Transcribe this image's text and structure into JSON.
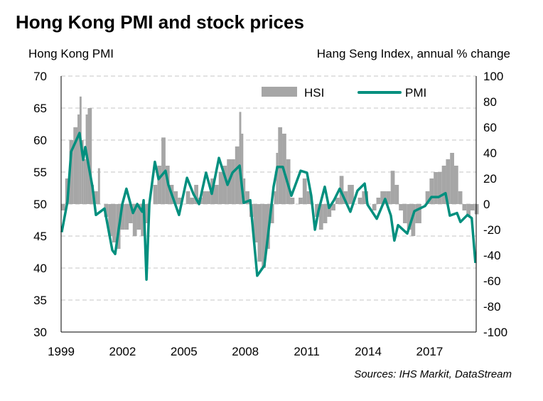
{
  "chart_data": {
    "type": "bar+line",
    "title": "Hong Kong PMI and stock prices",
    "ylabel_left": "Hong Kong PMI",
    "ylabel_right": "Hang Seng Index, annual % change",
    "source": "Sources:  IHS Markit, DataStream",
    "ylim_left": [
      30,
      70
    ],
    "ylim_right": [
      -100,
      100
    ],
    "xlim": [
      1999,
      2020.3
    ],
    "yticks_left": [
      30,
      35,
      40,
      45,
      50,
      55,
      60,
      65,
      70
    ],
    "yticks_right": [
      -100,
      -80,
      -60,
      -40,
      -20,
      0,
      20,
      40,
      60,
      80,
      100
    ],
    "xticks": [
      1999,
      2002,
      2005,
      2008,
      2011,
      2014,
      2017
    ],
    "grid": "horizontal dashed",
    "legend_placement": "top-right",
    "colors": {
      "HSI": "#a6a6a6",
      "PMI": "#008f7e"
    },
    "series": [
      {
        "name": "HSI",
        "axis": "right",
        "kind": "bar",
        "x": [
          1999.0,
          1999.2,
          1999.4,
          1999.6,
          1999.8,
          1999.9,
          2000.0,
          2000.1,
          2000.2,
          2000.3,
          2000.5,
          2000.6,
          2000.8,
          2000.9,
          2001.1,
          2001.3,
          2001.5,
          2001.7,
          2001.9,
          2002.1,
          2002.3,
          2002.5,
          2002.7,
          2002.9,
          2003.1,
          2003.3,
          2003.5,
          2003.7,
          2003.9,
          2004.1,
          2004.3,
          2004.5,
          2004.7,
          2004.9,
          2005.1,
          2005.3,
          2005.5,
          2005.7,
          2005.9,
          2006.1,
          2006.3,
          2006.5,
          2006.7,
          2006.9,
          2007.1,
          2007.3,
          2007.5,
          2007.7,
          2007.8,
          2007.9,
          2008.0,
          2008.2,
          2008.4,
          2008.6,
          2008.8,
          2009.0,
          2009.2,
          2009.4,
          2009.5,
          2009.6,
          2009.8,
          2010.0,
          2010.2,
          2010.4,
          2010.6,
          2010.8,
          2011.0,
          2011.2,
          2011.4,
          2011.6,
          2011.8,
          2012.0,
          2012.2,
          2012.4,
          2012.6,
          2012.8,
          2013.0,
          2013.3,
          2013.5,
          2013.7,
          2014.0,
          2014.2,
          2014.4,
          2014.6,
          2014.9,
          2015.1,
          2015.3,
          2015.5,
          2015.7,
          2015.9,
          2016.1,
          2016.3,
          2016.6,
          2016.8,
          2017.0,
          2017.2,
          2017.4,
          2017.6,
          2017.8,
          2018.0,
          2018.2,
          2018.4,
          2018.6,
          2018.8,
          2019.0,
          2019.2
        ],
        "values": [
          -5,
          20,
          50,
          60,
          70,
          84,
          50,
          35,
          70,
          75,
          15,
          10,
          28,
          0,
          -10,
          -25,
          -30,
          -35,
          -20,
          -20,
          -15,
          -25,
          -20,
          -25,
          -15,
          0,
          15,
          30,
          52,
          30,
          15,
          10,
          5,
          0,
          10,
          5,
          15,
          5,
          10,
          10,
          20,
          15,
          25,
          30,
          35,
          35,
          45,
          72,
          55,
          20,
          10,
          -10,
          -30,
          -45,
          -50,
          -35,
          -15,
          10,
          40,
          60,
          55,
          35,
          5,
          0,
          5,
          20,
          10,
          0,
          -10,
          -20,
          -15,
          -10,
          -5,
          5,
          22,
          10,
          15,
          0,
          5,
          10,
          0,
          -5,
          5,
          10,
          10,
          26,
          15,
          -5,
          -15,
          -20,
          -25,
          -15,
          0,
          10,
          20,
          25,
          25,
          30,
          35,
          40,
          30,
          10,
          -5,
          -10,
          -5,
          -8
        ]
      },
      {
        "name": "PMI",
        "axis": "left",
        "kind": "line",
        "x": [
          1999.03,
          1999.31,
          1999.49,
          1999.9,
          2000.08,
          2000.18,
          2000.53,
          2000.7,
          2001.12,
          2001.5,
          2001.64,
          2001.99,
          2002.19,
          2002.51,
          2002.72,
          2002.96,
          2003.03,
          2003.17,
          2003.31,
          2003.58,
          2003.76,
          2004.1,
          2004.24,
          2004.76,
          2005.15,
          2005.46,
          2005.74,
          2006.08,
          2006.36,
          2006.71,
          2007.13,
          2007.37,
          2007.72,
          2007.92,
          2008.24,
          2008.58,
          2008.93,
          2009.1,
          2009.38,
          2009.56,
          2009.83,
          2010.25,
          2010.7,
          2011.01,
          2011.22,
          2011.4,
          2011.57,
          2011.88,
          2012.09,
          2012.33,
          2012.61,
          2013.13,
          2013.48,
          2013.83,
          2013.97,
          2014.42,
          2014.83,
          2015.11,
          2015.28,
          2015.46,
          2015.91,
          2016.08,
          2016.26,
          2016.78,
          2017.09,
          2017.44,
          2017.78,
          2017.99,
          2018.34,
          2018.51,
          2018.85,
          2019.06,
          2019.24
        ],
        "values": [
          45.6,
          50.4,
          58.2,
          61.1,
          56.9,
          58.9,
          52.7,
          48.3,
          49.3,
          42.8,
          42.2,
          50.0,
          52.4,
          48.6,
          50.0,
          48.8,
          50.6,
          38.2,
          50.0,
          56.6,
          53.9,
          55.2,
          53.0,
          48.3,
          54.1,
          51.6,
          50.0,
          54.9,
          51.6,
          57.2,
          53.0,
          54.9,
          56.0,
          50.2,
          50.6,
          38.8,
          40.4,
          44.9,
          52.7,
          55.8,
          55.8,
          51.3,
          55.2,
          54.9,
          51.3,
          46.0,
          48.9,
          52.7,
          49.4,
          50.6,
          52.4,
          48.8,
          52.1,
          53.2,
          49.9,
          47.7,
          50.8,
          48.2,
          44.3,
          46.7,
          45.4,
          47.1,
          48.9,
          49.7,
          51.1,
          51.1,
          51.7,
          48.2,
          48.6,
          47.2,
          48.3,
          47.8,
          40.8
        ]
      }
    ]
  }
}
